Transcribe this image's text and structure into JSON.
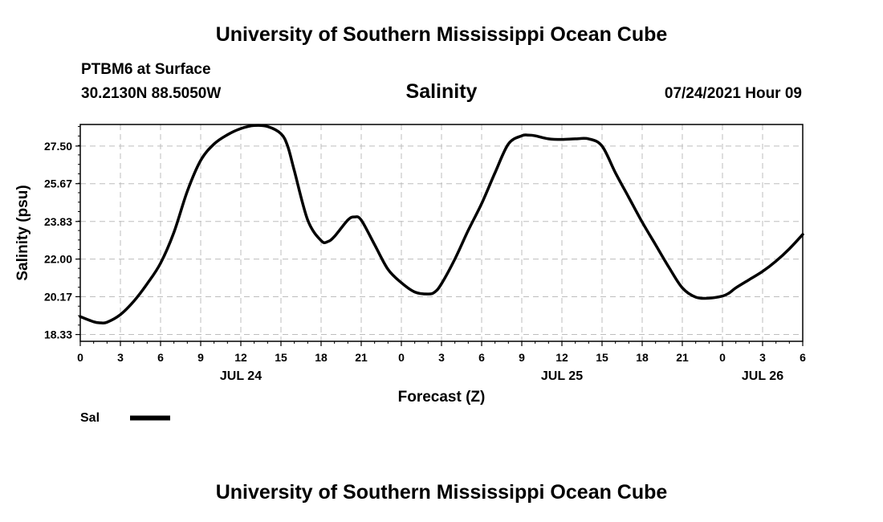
{
  "header": {
    "title": "University of Southern Mississippi Ocean Cube",
    "station": "PTBM6 at Surface",
    "location": "30.2130N  88.5050W",
    "variable": "Salinity",
    "datetime": "07/24/2021 Hour 09"
  },
  "footer": {
    "title": "University of Southern Mississippi Ocean Cube"
  },
  "legend": {
    "label": "Sal",
    "placement": "bottom-left"
  },
  "chart_data": {
    "type": "line",
    "title": "Salinity",
    "xlabel": "Forecast (Z)",
    "ylabel": "Salinity (psu)",
    "xlim": [
      0,
      54
    ],
    "ylim": [
      18.0,
      28.55
    ],
    "grid": true,
    "x_tick_labels": [
      "0",
      "3",
      "6",
      "9",
      "12",
      "15",
      "18",
      "21",
      "0",
      "3",
      "6",
      "9",
      "12",
      "15",
      "18",
      "21",
      "0",
      "3",
      "6"
    ],
    "date_labels": [
      {
        "label": "JUL 24",
        "at_hour": 12
      },
      {
        "label": "JUL 25",
        "at_hour": 36
      },
      {
        "label": "JUL 26",
        "at_hour": 51
      }
    ],
    "y_ticks": [
      "18.33",
      "20.17",
      "22.00",
      "23.83",
      "25.67",
      "27.50"
    ],
    "series": [
      {
        "name": "Sal",
        "color": "#000000",
        "x": [
          0,
          1,
          1.5,
          2,
          3,
          4,
          5,
          6,
          7,
          8,
          9,
          10,
          11,
          12,
          13,
          14,
          15,
          15.5,
          16,
          17,
          18,
          18.5,
          19,
          20,
          20.5,
          21,
          22,
          23,
          24,
          25,
          26,
          26.5,
          27,
          28,
          29,
          30,
          31,
          32,
          33,
          33.5,
          34,
          35,
          36,
          37,
          38,
          39,
          40,
          41,
          42,
          43,
          44,
          45,
          46,
          47,
          48,
          48.5,
          49,
          50,
          51,
          52,
          53,
          54
        ],
        "y": [
          19.2,
          18.95,
          18.9,
          18.93,
          19.3,
          19.95,
          20.8,
          21.8,
          23.3,
          25.3,
          26.8,
          27.6,
          28.05,
          28.35,
          28.5,
          28.45,
          28.1,
          27.5,
          26.3,
          23.9,
          22.9,
          22.85,
          23.1,
          23.9,
          24.05,
          23.9,
          22.7,
          21.5,
          20.85,
          20.4,
          20.3,
          20.4,
          20.8,
          22.0,
          23.4,
          24.7,
          26.2,
          27.6,
          28.0,
          28.03,
          28.0,
          27.85,
          27.82,
          27.85,
          27.85,
          27.5,
          26.2,
          25.0,
          23.8,
          22.7,
          21.6,
          20.6,
          20.15,
          20.1,
          20.2,
          20.35,
          20.6,
          21.0,
          21.4,
          21.9,
          22.5,
          23.2
        ]
      }
    ]
  }
}
